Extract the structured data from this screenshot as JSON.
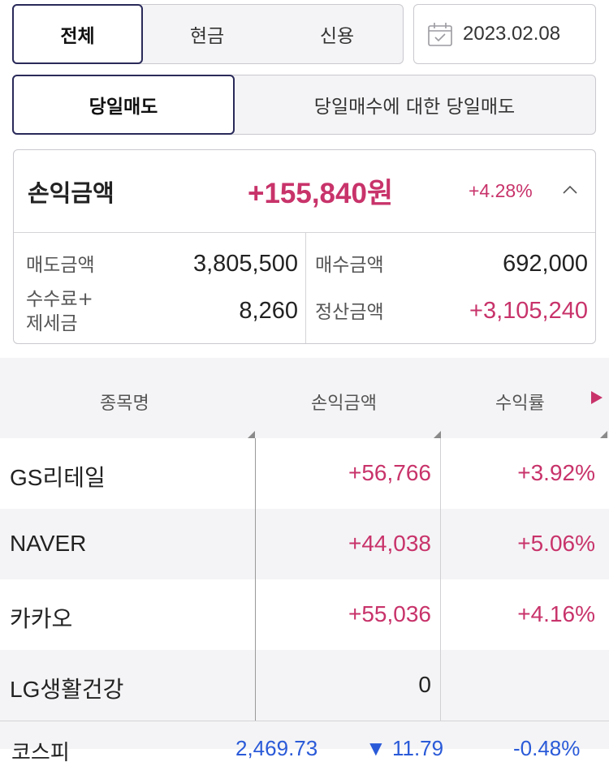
{
  "account_type_tabs": [
    {
      "label": "전체",
      "active": true
    },
    {
      "label": "현금",
      "active": false
    },
    {
      "label": "신용",
      "active": false
    }
  ],
  "date": {
    "value": "2023.02.08",
    "icon": "calendar-icon"
  },
  "trade_type_tabs": [
    {
      "label": "당일매도",
      "active": true
    },
    {
      "label": "당일매수에 대한 당일매도",
      "active": false
    }
  ],
  "summary": {
    "profit_label": "손익금액",
    "profit_amount": "+155,840원",
    "profit_rate": "+4.28%",
    "sell_label": "매도금액",
    "sell_value": "3,805,500",
    "buy_label": "매수금액",
    "buy_value": "692,000",
    "fee_label_line1": "수수료+",
    "fee_label_line2": "제세금",
    "fee_value": "8,260",
    "settle_label": "정산금액",
    "settle_value": "+3,105,240"
  },
  "table": {
    "headers": [
      "종목명",
      "손익금액",
      "수익률"
    ],
    "rows": [
      {
        "name": "GS리테일",
        "profit": "+56,766",
        "rate": "+3.92%"
      },
      {
        "name": "NAVER",
        "profit": "+44,038",
        "rate": "+5.06%"
      },
      {
        "name": "카카오",
        "profit": "+55,036",
        "rate": "+4.16%"
      },
      {
        "name": "LG생활건강",
        "profit": "0",
        "rate": ""
      }
    ]
  },
  "footer": {
    "index_name": "코스피",
    "index_value": "2,469.73",
    "index_change": "▼ 11.79",
    "index_rate": "-0.48%"
  },
  "colors": {
    "accent_navy": "#2a2a5a",
    "profit_pink": "#c8336a",
    "loss_blue": "#2a5ad8"
  }
}
